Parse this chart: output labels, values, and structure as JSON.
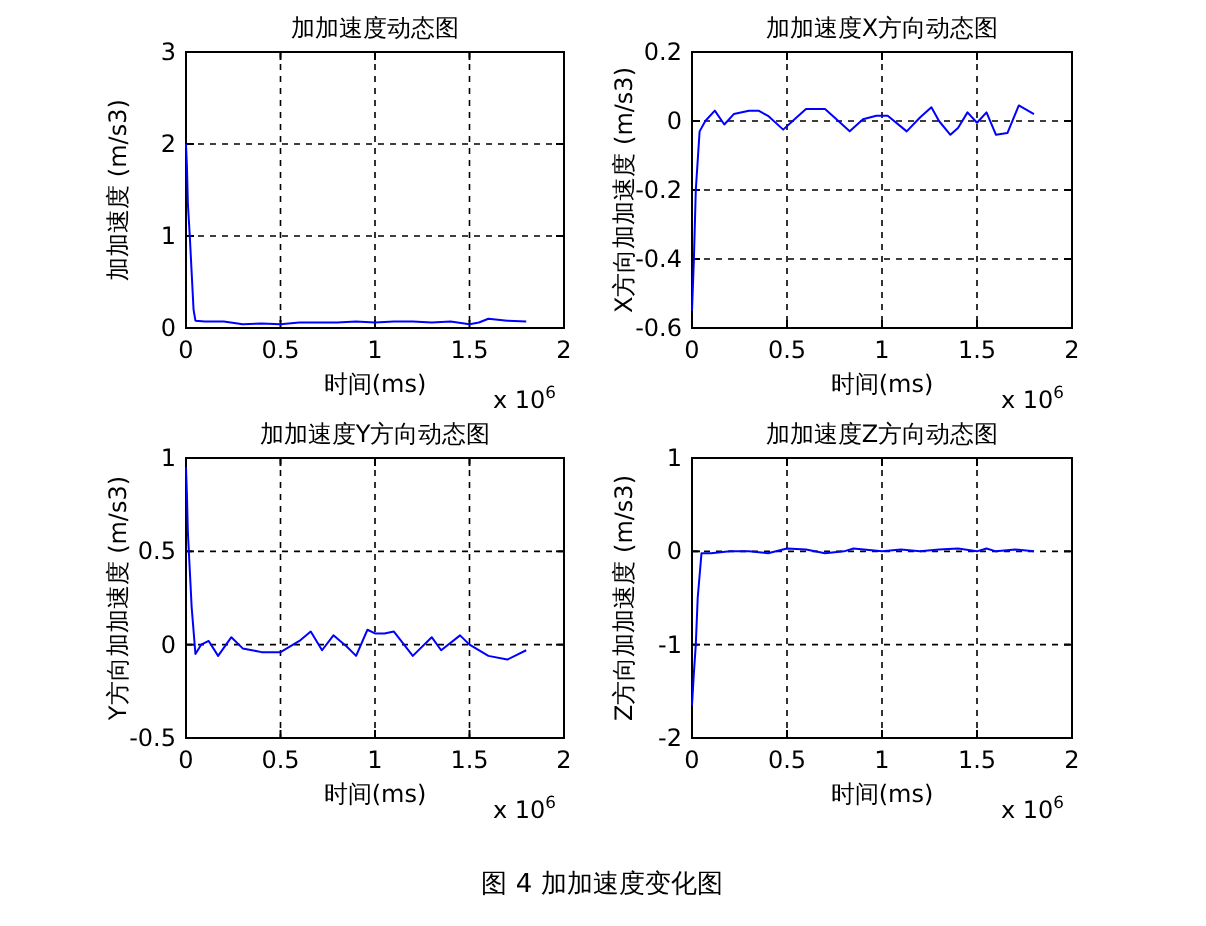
{
  "chart_data": [
    {
      "type": "line",
      "title": "加加速度动态图",
      "xlabel": "时间(ms)",
      "ylabel": "加加速度 (m/s3)",
      "annotations": [
        "x 10$^{6}$"
      ],
      "grid": true,
      "xlim": [
        0,
        2
      ],
      "xticks": [
        0,
        0.5,
        1,
        1.5,
        2
      ],
      "ylim": [
        0,
        3
      ],
      "yticks": [
        0,
        1,
        2,
        3
      ],
      "x": [
        0,
        0.005,
        0.01,
        0.02,
        0.03,
        0.04,
        0.05,
        0.1,
        0.2,
        0.3,
        0.4,
        0.5,
        0.6,
        0.7,
        0.8,
        0.9,
        1.0,
        1.1,
        1.2,
        1.3,
        1.4,
        1.5,
        1.55,
        1.6,
        1.65,
        1.7,
        1.8
      ],
      "series": [
        {
          "color": "#0000ff",
          "values": [
            2.0,
            1.75,
            1.35,
            1.0,
            0.6,
            0.2,
            0.08,
            0.07,
            0.07,
            0.04,
            0.05,
            0.04,
            0.06,
            0.06,
            0.06,
            0.07,
            0.06,
            0.07,
            0.07,
            0.06,
            0.07,
            0.04,
            0.06,
            0.1,
            0.09,
            0.08,
            0.07
          ]
        }
      ]
    },
    {
      "type": "line",
      "title": "加加速度X方向动态图",
      "xlabel": "时间(ms)",
      "ylabel": "X方向加加速度 (m/s3)",
      "annotations": [
        "x 10$^{6}$"
      ],
      "grid": true,
      "xlim": [
        0,
        2
      ],
      "xticks": [
        0,
        0.5,
        1,
        1.5,
        2
      ],
      "ylim": [
        -0.6,
        0.2
      ],
      "yticks": [
        -0.6,
        -0.4,
        -0.2,
        0,
        0.2
      ],
      "x": [
        0,
        0.01,
        0.02,
        0.04,
        0.07,
        0.12,
        0.17,
        0.22,
        0.3,
        0.35,
        0.4,
        0.48,
        0.55,
        0.6,
        0.7,
        0.75,
        0.83,
        0.9,
        0.97,
        1.03,
        1.13,
        1.2,
        1.26,
        1.3,
        1.36,
        1.4,
        1.45,
        1.5,
        1.55,
        1.6,
        1.66,
        1.72,
        1.8
      ],
      "series": [
        {
          "color": "#0000ff",
          "values": [
            -0.55,
            -0.4,
            -0.2,
            -0.03,
            0.0,
            0.03,
            -0.01,
            0.02,
            0.03,
            0.03,
            0.015,
            -0.025,
            0.01,
            0.035,
            0.035,
            0.01,
            -0.03,
            0.005,
            0.015,
            0.015,
            -0.03,
            0.01,
            0.04,
            0.0,
            -0.04,
            -0.02,
            0.025,
            -0.005,
            0.025,
            -0.04,
            -0.035,
            0.045,
            0.02
          ]
        }
      ]
    },
    {
      "type": "line",
      "title": "加加速度Y方向动态图",
      "xlabel": "时间(ms)",
      "ylabel": "Y方向加加速度 (m/s3)",
      "annotations": [
        "x 10$^{6}$"
      ],
      "grid": true,
      "xlim": [
        0,
        2
      ],
      "xticks": [
        0,
        0.5,
        1,
        1.5,
        2
      ],
      "ylim": [
        -0.5,
        1
      ],
      "yticks": [
        -0.5,
        0,
        0.5,
        1
      ],
      "x": [
        0,
        0.005,
        0.01,
        0.02,
        0.03,
        0.05,
        0.08,
        0.12,
        0.17,
        0.24,
        0.3,
        0.4,
        0.5,
        0.6,
        0.66,
        0.72,
        0.78,
        0.85,
        0.9,
        0.96,
        1.0,
        1.05,
        1.1,
        1.2,
        1.3,
        1.35,
        1.45,
        1.5,
        1.6,
        1.7,
        1.8
      ],
      "series": [
        {
          "color": "#0000ff",
          "values": [
            0.95,
            0.8,
            0.6,
            0.4,
            0.2,
            -0.05,
            0.0,
            0.02,
            -0.06,
            0.04,
            -0.02,
            -0.04,
            -0.04,
            0.02,
            0.07,
            -0.03,
            0.05,
            -0.01,
            -0.06,
            0.08,
            0.06,
            0.06,
            0.07,
            -0.06,
            0.04,
            -0.03,
            0.05,
            0.0,
            -0.06,
            -0.08,
            -0.03
          ]
        }
      ]
    },
    {
      "type": "line",
      "title": "加加速度Z方向动态图",
      "xlabel": "时间(ms)",
      "ylabel": "Z方向加加速度 (m/s3)",
      "annotations": [
        "x 10$^{6}$",
        "图 4  加加速度变化图"
      ],
      "grid": true,
      "xlim": [
        0,
        2
      ],
      "xticks": [
        0,
        0.5,
        1,
        1.5,
        2
      ],
      "ylim": [
        -2,
        1
      ],
      "yticks": [
        -2,
        -1,
        0,
        1
      ],
      "x": [
        0,
        0.01,
        0.02,
        0.03,
        0.05,
        0.1,
        0.2,
        0.3,
        0.4,
        0.5,
        0.6,
        0.7,
        0.8,
        0.85,
        1.0,
        1.1,
        1.2,
        1.3,
        1.4,
        1.5,
        1.55,
        1.6,
        1.7,
        1.8
      ],
      "series": [
        {
          "color": "#0000ff",
          "values": [
            -1.65,
            -1.3,
            -1.0,
            -0.5,
            -0.02,
            -0.02,
            0.0,
            0.0,
            -0.02,
            0.03,
            0.02,
            -0.02,
            0.0,
            0.03,
            0.0,
            0.02,
            0.0,
            0.02,
            0.03,
            0.0,
            0.03,
            0.0,
            0.02,
            0.0
          ]
        }
      ]
    }
  ]
}
